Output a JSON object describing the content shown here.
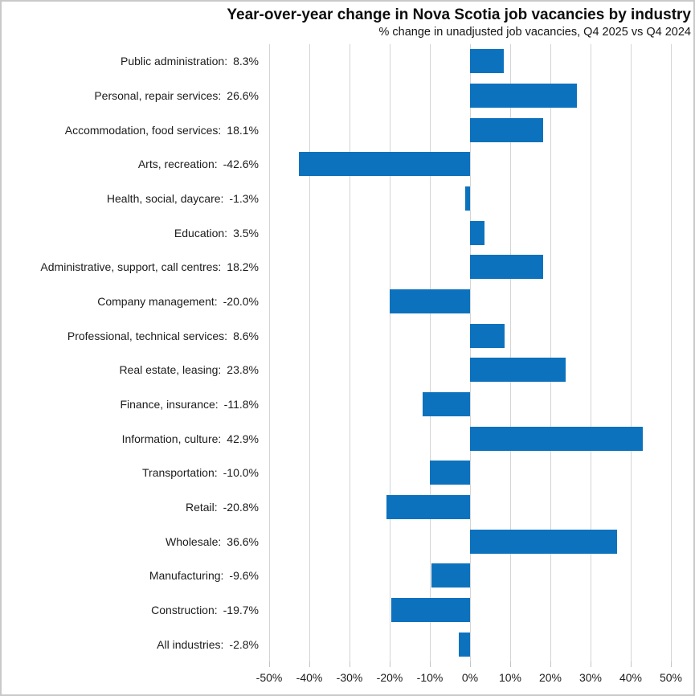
{
  "title": "Year-over-year change in Nova Scotia job vacancies by industry",
  "subtitle": "% change in unadjusted job vacancies, Q4 2025 vs Q4 2024",
  "colors": {
    "bar": "#0D72BD",
    "gridline": "#D4D4D4",
    "tick": "#C4C4C4",
    "border": "#C9C9C9",
    "text": "#1A1A1A"
  },
  "rows": [
    {
      "label": "Public administration:",
      "value": "8.3%"
    },
    {
      "label": "Personal, repair services:",
      "value": "26.6%"
    },
    {
      "label": "Accommodation, food services:",
      "value": "18.1%"
    },
    {
      "label": "Arts, recreation:",
      "value": "-42.6%"
    },
    {
      "label": "Health, social, daycare:",
      "value": "-1.3%"
    },
    {
      "label": "Education:",
      "value": "3.5%"
    },
    {
      "label": "Administrative, support, call centres:",
      "value": "18.2%"
    },
    {
      "label": "Company management:",
      "value": "-20.0%"
    },
    {
      "label": "Professional, technical services:",
      "value": "8.6%"
    },
    {
      "label": "Real estate, leasing:",
      "value": "23.8%"
    },
    {
      "label": "Finance, insurance:",
      "value": "-11.8%"
    },
    {
      "label": "Information, culture:",
      "value": "42.9%"
    },
    {
      "label": "Transportation:",
      "value": "-10.0%"
    },
    {
      "label": "Retail:",
      "value": "-20.8%"
    },
    {
      "label": "Wholesale:",
      "value": "36.6%"
    },
    {
      "label": "Manufacturing:",
      "value": "-9.6%"
    },
    {
      "label": "Construction:",
      "value": "-19.7%"
    },
    {
      "label": "All industries:",
      "value": "-2.8%"
    }
  ],
  "chart_data": {
    "type": "bar",
    "orientation": "horizontal",
    "title": "Year-over-year change in Nova Scotia job vacancies by industry",
    "subtitle": "% change in unadjusted job vacancies, Q4 2025 vs Q4 2024",
    "categories": [
      "Public administration",
      "Personal, repair services",
      "Accommodation, food services",
      "Arts, recreation",
      "Health, social, daycare",
      "Education",
      "Administrative, support, call centres",
      "Company management",
      "Professional, technical services",
      "Real estate, leasing",
      "Finance, insurance",
      "Information, culture",
      "Transportation",
      "Retail",
      "Wholesale",
      "Manufacturing",
      "Construction",
      "All industries"
    ],
    "values": [
      8.3,
      26.6,
      18.1,
      -42.6,
      -1.3,
      3.5,
      18.2,
      -20.0,
      8.6,
      23.8,
      -11.8,
      42.9,
      -10.0,
      -20.8,
      36.6,
      -9.6,
      -19.7,
      -2.8
    ],
    "value_labels": [
      "8.3%",
      "26.6%",
      "18.1%",
      "-42.6%",
      "-1.3%",
      "3.5%",
      "18.2%",
      "-20.0%",
      "8.6%",
      "23.8%",
      "-11.8%",
      "42.9%",
      "-10.0%",
      "-20.8%",
      "36.6%",
      "-9.6%",
      "-19.7%",
      "-2.8%"
    ],
    "xlim": [
      -50,
      50
    ],
    "x_ticks": [
      "-50%",
      "-40%",
      "-30%",
      "-20%",
      "-10%",
      "0%",
      "10%",
      "20%",
      "30%",
      "40%",
      "50%"
    ],
    "grid": true,
    "legend": "none",
    "bar_color": "#0D72BD"
  }
}
